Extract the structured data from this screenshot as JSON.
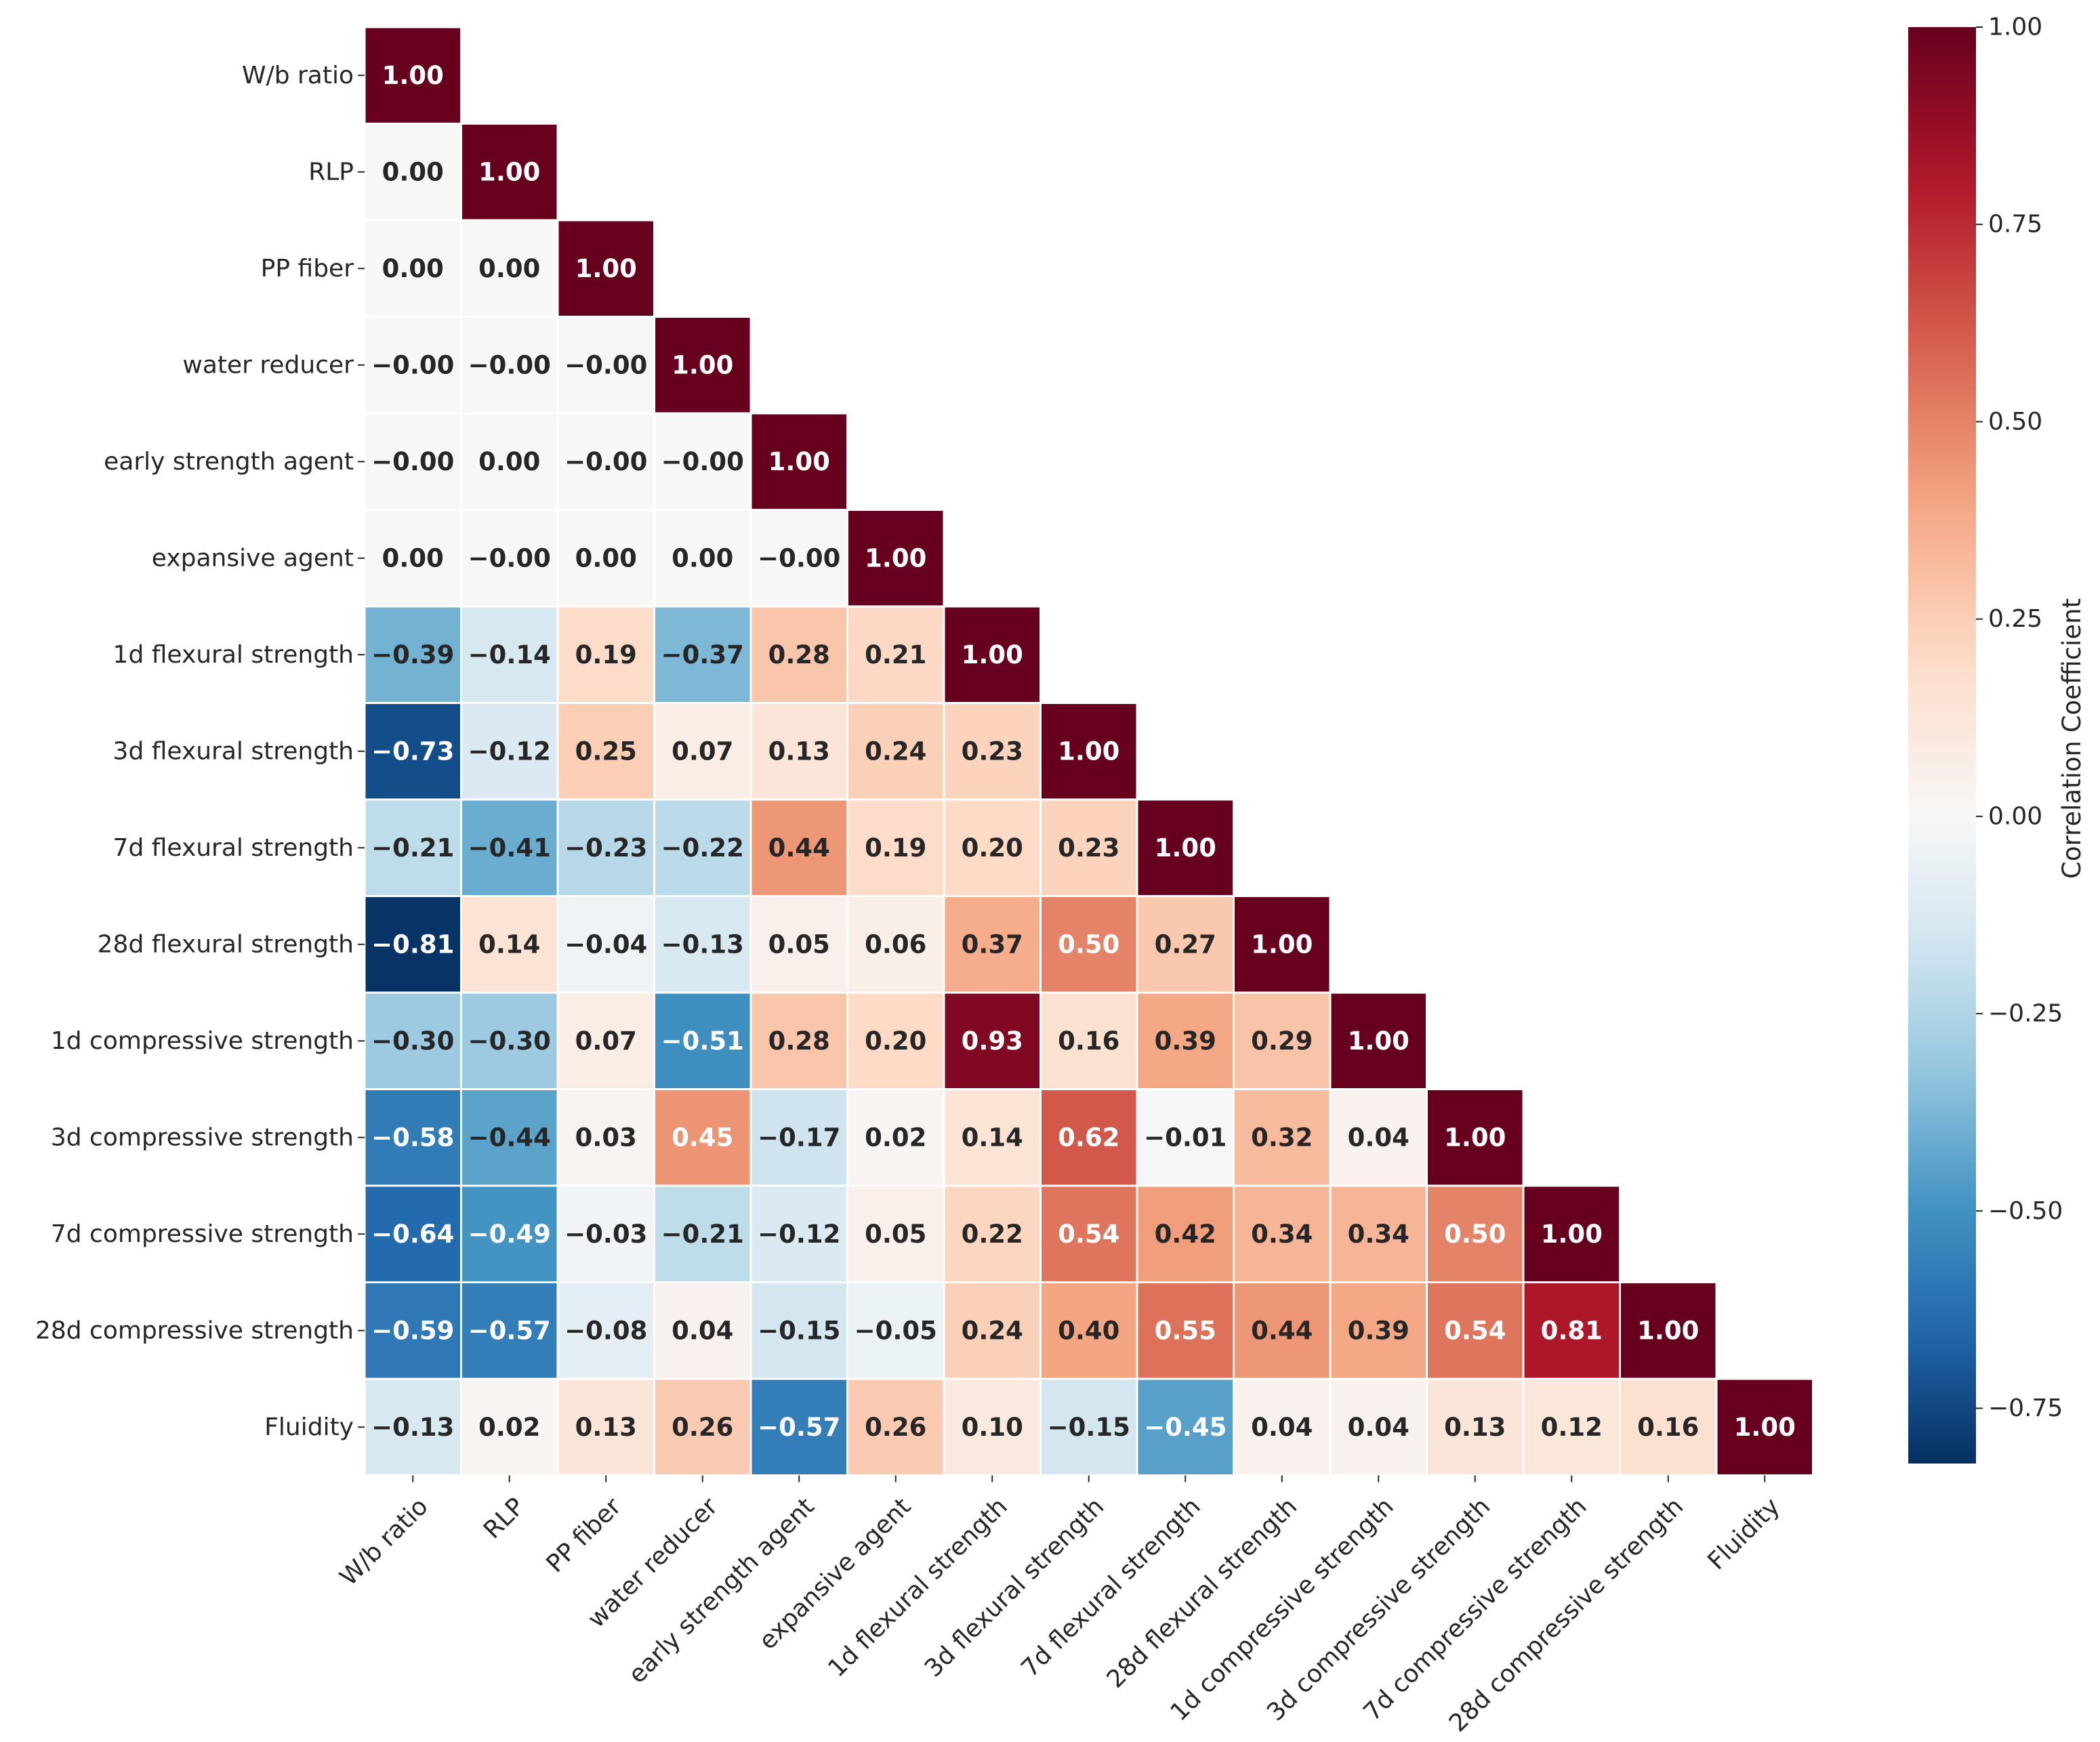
{
  "chart_data": {
    "type": "heatmap",
    "variables": [
      "W/b ratio",
      "RLP",
      "PP fiber",
      "water reducer",
      "early strength agent",
      "expansive agent",
      "1d flexural strength",
      "3d flexural strength",
      "7d flexural strength",
      "28d flexural strength",
      "1d compressive strength",
      "3d compressive strength",
      "7d compressive strength",
      "28d compressive strength",
      "Fluidity"
    ],
    "matrix_lower_triangle": [
      [
        "1.00"
      ],
      [
        "0.00",
        "1.00"
      ],
      [
        "0.00",
        "0.00",
        "1.00"
      ],
      [
        "−0.00",
        "−0.00",
        "−0.00",
        "1.00"
      ],
      [
        "−0.00",
        "0.00",
        "−0.00",
        "−0.00",
        "1.00"
      ],
      [
        "0.00",
        "−0.00",
        "0.00",
        "0.00",
        "−0.00",
        "1.00"
      ],
      [
        "−0.39",
        "−0.14",
        "0.19",
        "−0.37",
        "0.28",
        "0.21",
        "1.00"
      ],
      [
        "−0.73",
        "−0.12",
        "0.25",
        "0.07",
        "0.13",
        "0.24",
        "0.23",
        "1.00"
      ],
      [
        "−0.21",
        "−0.41",
        "−0.23",
        "−0.22",
        "0.44",
        "0.19",
        "0.20",
        "0.23",
        "1.00"
      ],
      [
        "−0.81",
        "0.14",
        "−0.04",
        "−0.13",
        "0.05",
        "0.06",
        "0.37",
        "0.50",
        "0.27",
        "1.00"
      ],
      [
        "−0.30",
        "−0.30",
        "0.07",
        "−0.51",
        "0.28",
        "0.20",
        "0.93",
        "0.16",
        "0.39",
        "0.29",
        "1.00"
      ],
      [
        "−0.58",
        "−0.44",
        "0.03",
        "0.45",
        "−0.17",
        "0.02",
        "0.14",
        "0.62",
        "−0.01",
        "0.32",
        "0.04",
        "1.00"
      ],
      [
        "−0.64",
        "−0.49",
        "−0.03",
        "−0.21",
        "−0.12",
        "0.05",
        "0.22",
        "0.54",
        "0.42",
        "0.34",
        "0.34",
        "0.50",
        "1.00"
      ],
      [
        "−0.59",
        "−0.57",
        "−0.08",
        "0.04",
        "−0.15",
        "−0.05",
        "0.24",
        "0.40",
        "0.55",
        "0.44",
        "0.39",
        "0.54",
        "0.81",
        "1.00"
      ],
      [
        "−0.13",
        "0.02",
        "0.13",
        "0.26",
        "−0.57",
        "0.26",
        "0.10",
        "−0.15",
        "−0.45",
        "0.04",
        "0.04",
        "0.13",
        "0.12",
        "0.16",
        "1.00"
      ]
    ],
    "colormap": "RdBu_r",
    "vmin": -0.82,
    "vmax": 1.0,
    "colorbar": {
      "label": "Correlation Coefficient",
      "ticks": [
        1.0,
        0.75,
        0.5,
        0.25,
        0.0,
        -0.25,
        -0.5,
        -0.75
      ],
      "tick_labels": [
        "1.00",
        "0.75",
        "0.50",
        "0.25",
        "0.00",
        "−0.25",
        "−0.50",
        "−0.75"
      ]
    },
    "annotation_color_light": "#ffffff",
    "annotation_color_dark": "#262626"
  }
}
